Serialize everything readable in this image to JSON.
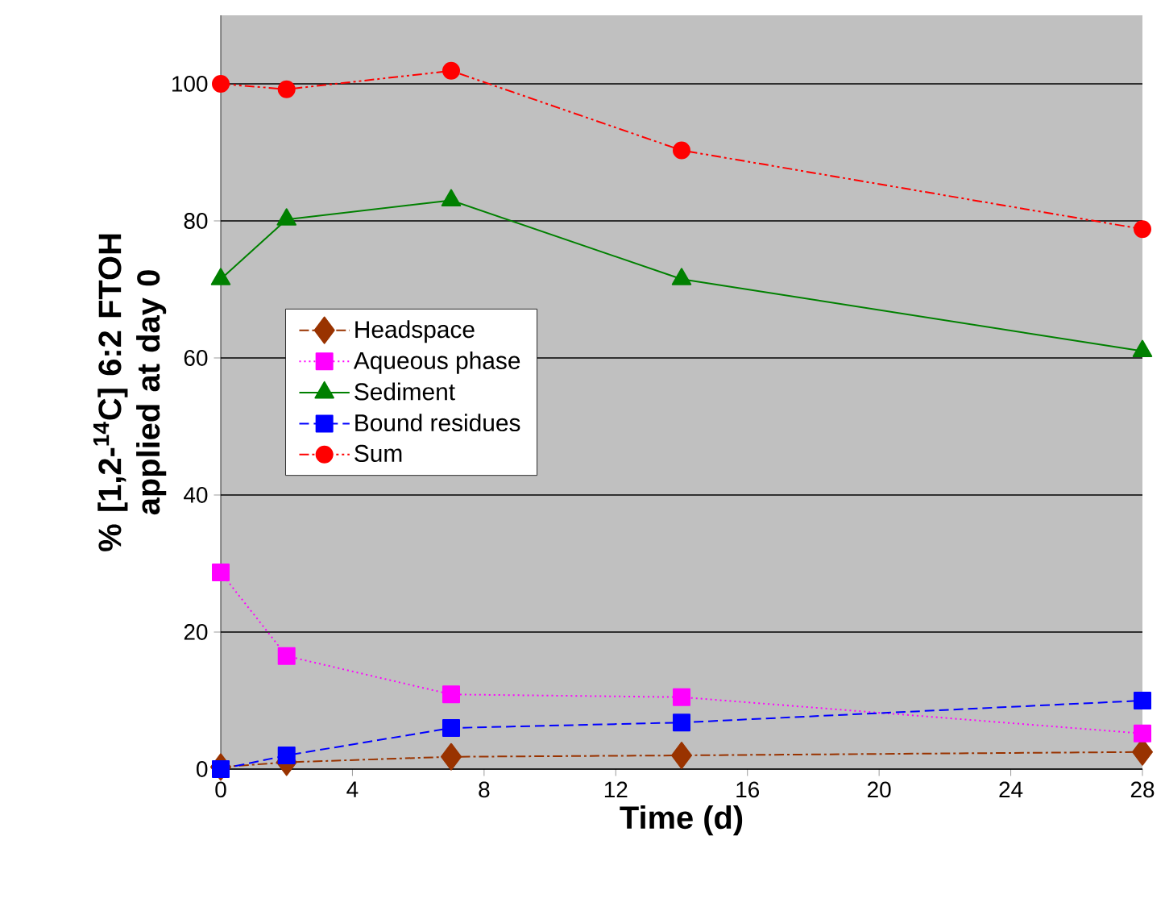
{
  "chart_data": {
    "type": "line",
    "xlabel": "Time (d)",
    "ylabel": "% [1,2-$^{14}$C] 6:2 FTOH applied at day 0",
    "x": [
      0,
      2,
      7,
      14,
      28
    ],
    "series": [
      {
        "name": "Headspace",
        "color": "#993300",
        "marker": "diamond",
        "line_style": "dashdot",
        "values": [
          0.3,
          1,
          1.8,
          2,
          2.5
        ]
      },
      {
        "name": "Aqueous phase",
        "color": "#ff00ff",
        "marker": "square",
        "line_style": "dotted",
        "values": [
          28.7,
          16.5,
          10.9,
          10.5,
          5.2
        ]
      },
      {
        "name": "Sediment",
        "color": "#008000",
        "marker": "triangle",
        "line_style": "solid",
        "values": [
          71.5,
          80.2,
          83,
          71.5,
          61
        ]
      },
      {
        "name": "Bound residues",
        "color": "#0000ff",
        "marker": "square",
        "line_style": "dashed",
        "values": [
          0,
          2,
          6,
          6.8,
          10
        ]
      },
      {
        "name": "Sum",
        "color": "#ff0000",
        "marker": "circle",
        "line_style": "dashdotdot",
        "values": [
          100,
          99.2,
          101.9,
          90.3,
          78.8
        ]
      }
    ],
    "xlim": [
      0,
      28
    ],
    "xticks": [
      0,
      4,
      8,
      12,
      16,
      20,
      24,
      28
    ],
    "ylim": [
      0,
      110
    ],
    "yticks": [
      0,
      20,
      40,
      60,
      80,
      100
    ],
    "grid": "y",
    "legend": "center left"
  }
}
